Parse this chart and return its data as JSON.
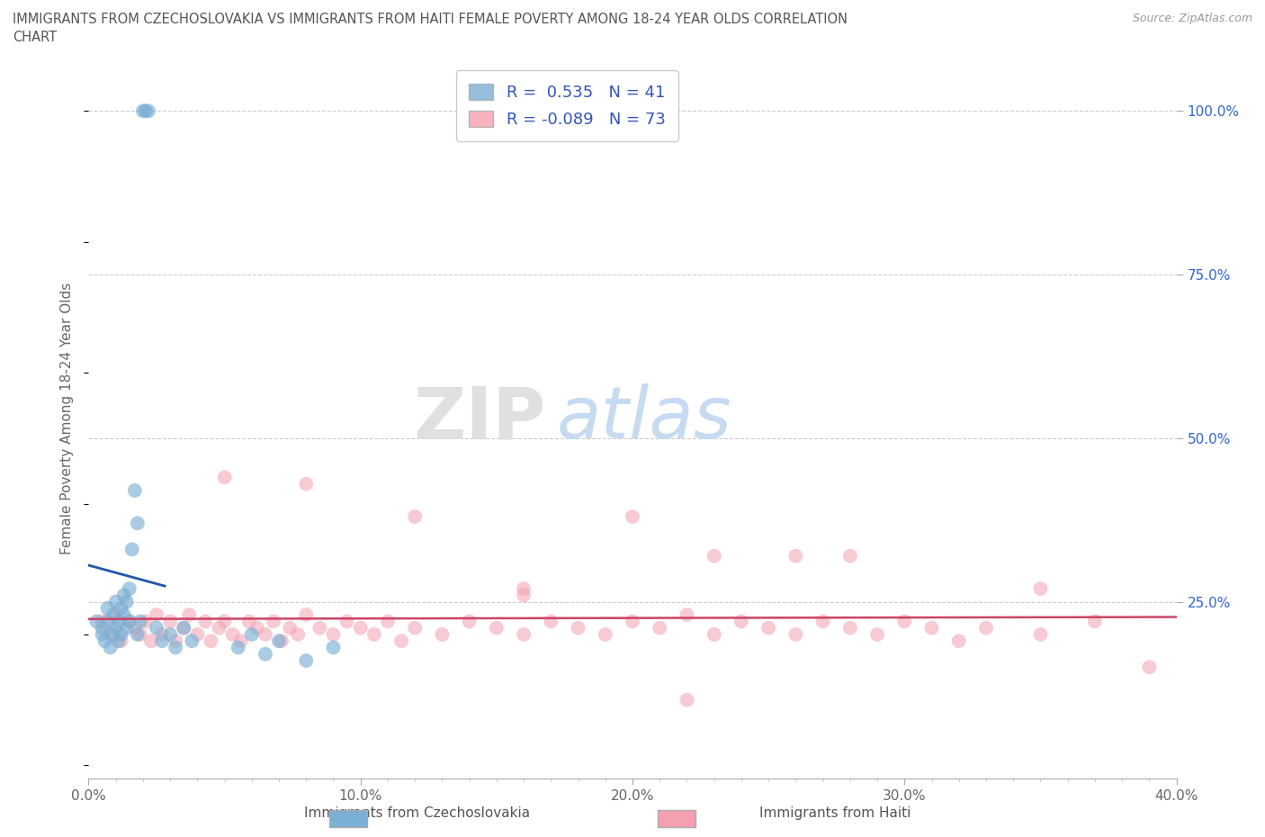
{
  "title_line1": "IMMIGRANTS FROM CZECHOSLOVAKIA VS IMMIGRANTS FROM HAITI FEMALE POVERTY AMONG 18-24 YEAR OLDS CORRELATION",
  "title_line2": "CHART",
  "source": "Source: ZipAtlas.com",
  "xlabel_blue": "Immigrants from Czechoslovakia",
  "xlabel_pink": "Immigrants from Haiti",
  "ylabel": "Female Poverty Among 18-24 Year Olds",
  "xlim": [
    0.0,
    0.4
  ],
  "ylim": [
    -0.02,
    1.08
  ],
  "x_ticks": [
    0.0,
    0.1,
    0.2,
    0.3,
    0.4
  ],
  "x_tick_labels": [
    "0.0%",
    "10.0%",
    "20.0%",
    "30.0%",
    "40.0%"
  ],
  "y_ticks_right": [
    0.25,
    0.5,
    0.75,
    1.0
  ],
  "y_tick_labels_right": [
    "25.0%",
    "50.0%",
    "75.0%",
    "100.0%"
  ],
  "grid_color": "#cccccc",
  "background_color": "#ffffff",
  "watermark_zip": "ZIP",
  "watermark_atlas": "atlas",
  "legend_R_blue": " 0.535",
  "legend_N_blue": "41",
  "legend_R_pink": "-0.089",
  "legend_N_pink": "73",
  "blue_color": "#7bafd4",
  "pink_color": "#f4a0b0",
  "trend_blue_color": "#2255aa",
  "trend_pink_color": "#cc4466",
  "blue_scatter_x": [
    0.003,
    0.005,
    0.005,
    0.006,
    0.007,
    0.007,
    0.008,
    0.009,
    0.009,
    0.01,
    0.01,
    0.011,
    0.011,
    0.012,
    0.012,
    0.013,
    0.013,
    0.014,
    0.014,
    0.015,
    0.015,
    0.016,
    0.017,
    0.018,
    0.018,
    0.019,
    0.02,
    0.021,
    0.022,
    0.025,
    0.027,
    0.03,
    0.032,
    0.035,
    0.038,
    0.055,
    0.06,
    0.065,
    0.07,
    0.08,
    0.09
  ],
  "blue_scatter_y": [
    0.22,
    0.2,
    0.21,
    0.19,
    0.22,
    0.24,
    0.18,
    0.2,
    0.23,
    0.21,
    0.25,
    0.19,
    0.22,
    0.2,
    0.24,
    0.23,
    0.26,
    0.21,
    0.25,
    0.22,
    0.27,
    0.33,
    0.42,
    0.37,
    0.2,
    0.22,
    1.0,
    1.0,
    1.0,
    0.21,
    0.19,
    0.2,
    0.18,
    0.21,
    0.19,
    0.18,
    0.2,
    0.17,
    0.19,
    0.16,
    0.18
  ],
  "pink_scatter_x": [
    0.005,
    0.008,
    0.01,
    0.012,
    0.015,
    0.017,
    0.019,
    0.021,
    0.023,
    0.025,
    0.027,
    0.03,
    0.032,
    0.035,
    0.037,
    0.04,
    0.043,
    0.045,
    0.048,
    0.05,
    0.053,
    0.056,
    0.059,
    0.062,
    0.065,
    0.068,
    0.071,
    0.074,
    0.077,
    0.08,
    0.085,
    0.09,
    0.095,
    0.1,
    0.105,
    0.11,
    0.115,
    0.12,
    0.13,
    0.14,
    0.15,
    0.16,
    0.17,
    0.18,
    0.19,
    0.2,
    0.21,
    0.22,
    0.23,
    0.24,
    0.25,
    0.26,
    0.27,
    0.28,
    0.29,
    0.3,
    0.31,
    0.32,
    0.33,
    0.35,
    0.37,
    0.39,
    0.05,
    0.08,
    0.12,
    0.16,
    0.2,
    0.23,
    0.26,
    0.16,
    0.28,
    0.35,
    0.22
  ],
  "pink_scatter_y": [
    0.22,
    0.2,
    0.23,
    0.19,
    0.22,
    0.21,
    0.2,
    0.22,
    0.19,
    0.23,
    0.2,
    0.22,
    0.19,
    0.21,
    0.23,
    0.2,
    0.22,
    0.19,
    0.21,
    0.22,
    0.2,
    0.19,
    0.22,
    0.21,
    0.2,
    0.22,
    0.19,
    0.21,
    0.2,
    0.23,
    0.21,
    0.2,
    0.22,
    0.21,
    0.2,
    0.22,
    0.19,
    0.21,
    0.2,
    0.22,
    0.21,
    0.2,
    0.22,
    0.21,
    0.2,
    0.22,
    0.21,
    0.23,
    0.2,
    0.22,
    0.21,
    0.2,
    0.22,
    0.21,
    0.2,
    0.22,
    0.21,
    0.19,
    0.21,
    0.2,
    0.22,
    0.15,
    0.44,
    0.43,
    0.38,
    0.27,
    0.38,
    0.32,
    0.32,
    0.26,
    0.32,
    0.27,
    0.1
  ]
}
